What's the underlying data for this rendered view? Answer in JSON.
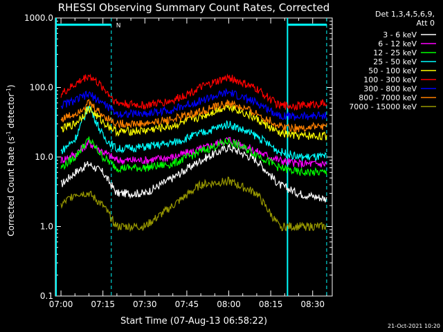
{
  "chart_data": {
    "type": "line",
    "title": "RHESSI Observing Summary Count Rates, Corrected",
    "xlabel": "Start Time (07-Aug-13 06:58:22)",
    "ylabel_main": "Corrected Count Rate (s",
    "ylabel_sup1": "-1",
    "ylabel_mid": " detector",
    "ylabel_sup2": "-1",
    "ylabel_end": ")",
    "yscale": "log",
    "ylim": [
      0.1,
      1000
    ],
    "xlim_minutes": [
      -2,
      37
    ],
    "x_start": "06:58:22",
    "y_ticks": [
      {
        "value": 0.1,
        "label": "0.1"
      },
      {
        "value": 1,
        "label": "1.0"
      },
      {
        "value": 10,
        "label": "10.0"
      },
      {
        "value": 100,
        "label": "100.0"
      },
      {
        "value": 1000,
        "label": "1000.0"
      }
    ],
    "x_ticks": [
      {
        "minutes": 0,
        "label": "07:00"
      },
      {
        "minutes": 15,
        "label": "07:15"
      },
      {
        "minutes": 30,
        "label": "07:30"
      },
      {
        "minutes": 45,
        "label": "07:45"
      },
      {
        "minutes": 60,
        "label": "08:00"
      },
      {
        "minutes": 75,
        "label": "08:15"
      },
      {
        "minutes": 90,
        "label": "08:30"
      }
    ],
    "legend_header": [
      "Det 1,3,4,5,6,9,",
      "Att 0"
    ],
    "legend_position": "top-right, outside plot",
    "series": [
      {
        "name": "3 - 6 keV",
        "color": "#ffffff",
        "points": [
          [
            0,
            4
          ],
          [
            5,
            6
          ],
          [
            10,
            8
          ],
          [
            15,
            6
          ],
          [
            20,
            3
          ],
          [
            30,
            3
          ],
          [
            40,
            5
          ],
          [
            50,
            9
          ],
          [
            60,
            14
          ],
          [
            70,
            9
          ],
          [
            78,
            4
          ],
          [
            85,
            3
          ],
          [
            95,
            2.5
          ]
        ]
      },
      {
        "name": "6 - 12 keV",
        "color": "#ff00ff",
        "points": [
          [
            0,
            9
          ],
          [
            5,
            11
          ],
          [
            10,
            16
          ],
          [
            15,
            12
          ],
          [
            20,
            9
          ],
          [
            30,
            9
          ],
          [
            40,
            10
          ],
          [
            50,
            13
          ],
          [
            60,
            18
          ],
          [
            70,
            12
          ],
          [
            78,
            9
          ],
          [
            85,
            8
          ],
          [
            95,
            8
          ]
        ]
      },
      {
        "name": "12 - 25 keV",
        "color": "#00ff00",
        "points": [
          [
            0,
            7
          ],
          [
            5,
            10
          ],
          [
            10,
            18
          ],
          [
            15,
            10
          ],
          [
            20,
            7
          ],
          [
            30,
            7
          ],
          [
            40,
            8
          ],
          [
            50,
            12
          ],
          [
            60,
            17
          ],
          [
            70,
            11
          ],
          [
            78,
            7
          ],
          [
            85,
            6
          ],
          [
            95,
            6
          ]
        ]
      },
      {
        "name": "25 - 50 keV",
        "color": "#00ffff",
        "points": [
          [
            0,
            12
          ],
          [
            5,
            18
          ],
          [
            10,
            55
          ],
          [
            15,
            20
          ],
          [
            20,
            13
          ],
          [
            30,
            14
          ],
          [
            40,
            16
          ],
          [
            50,
            22
          ],
          [
            60,
            30
          ],
          [
            70,
            20
          ],
          [
            78,
            12
          ],
          [
            85,
            10
          ],
          [
            95,
            10
          ]
        ]
      },
      {
        "name": "50 - 100 keV",
        "color": "#ffff00",
        "points": [
          [
            0,
            25
          ],
          [
            5,
            30
          ],
          [
            10,
            50
          ],
          [
            15,
            32
          ],
          [
            20,
            23
          ],
          [
            30,
            24
          ],
          [
            40,
            28
          ],
          [
            50,
            38
          ],
          [
            60,
            55
          ],
          [
            70,
            35
          ],
          [
            78,
            22
          ],
          [
            85,
            20
          ],
          [
            95,
            20
          ]
        ]
      },
      {
        "name": "100 - 300 keV",
        "color": "#ff0000",
        "points": [
          [
            0,
            80
          ],
          [
            5,
            110
          ],
          [
            10,
            150
          ],
          [
            15,
            100
          ],
          [
            20,
            60
          ],
          [
            30,
            55
          ],
          [
            40,
            65
          ],
          [
            50,
            100
          ],
          [
            60,
            140
          ],
          [
            70,
            95
          ],
          [
            78,
            55
          ],
          [
            85,
            55
          ],
          [
            95,
            60
          ]
        ]
      },
      {
        "name": "300 - 800 keV",
        "color": "#0000ff",
        "points": [
          [
            0,
            55
          ],
          [
            5,
            65
          ],
          [
            10,
            80
          ],
          [
            15,
            60
          ],
          [
            20,
            42
          ],
          [
            30,
            42
          ],
          [
            40,
            48
          ],
          [
            50,
            65
          ],
          [
            60,
            85
          ],
          [
            70,
            60
          ],
          [
            78,
            40
          ],
          [
            85,
            38
          ],
          [
            95,
            40
          ]
        ]
      },
      {
        "name": "800 - 7000 keV",
        "color": "#ff8000",
        "points": [
          [
            0,
            35
          ],
          [
            5,
            42
          ],
          [
            10,
            60
          ],
          [
            15,
            40
          ],
          [
            20,
            30
          ],
          [
            30,
            30
          ],
          [
            40,
            35
          ],
          [
            50,
            45
          ],
          [
            60,
            60
          ],
          [
            70,
            42
          ],
          [
            78,
            28
          ],
          [
            85,
            26
          ],
          [
            95,
            28
          ]
        ]
      },
      {
        "name": "7000 - 15000 keV",
        "color": "#999900",
        "points": [
          [
            0,
            2
          ],
          [
            5,
            3
          ],
          [
            10,
            3
          ],
          [
            15,
            2
          ],
          [
            20,
            1
          ],
          [
            30,
            1
          ],
          [
            40,
            2
          ],
          [
            50,
            4
          ],
          [
            60,
            4.5
          ],
          [
            70,
            3
          ],
          [
            78,
            1
          ],
          [
            85,
            1
          ],
          [
            95,
            1
          ]
        ]
      }
    ],
    "attenuator_bar": {
      "color": "#00ffff",
      "flag_label": "N",
      "intervals_minutes": [
        [
          -2,
          18
        ],
        [
          81,
          95
        ]
      ],
      "value": 800
    },
    "cyan_markers_minutes": [
      18,
      81,
      95
    ],
    "footer_date": "21-Oct-2021 10:20"
  }
}
